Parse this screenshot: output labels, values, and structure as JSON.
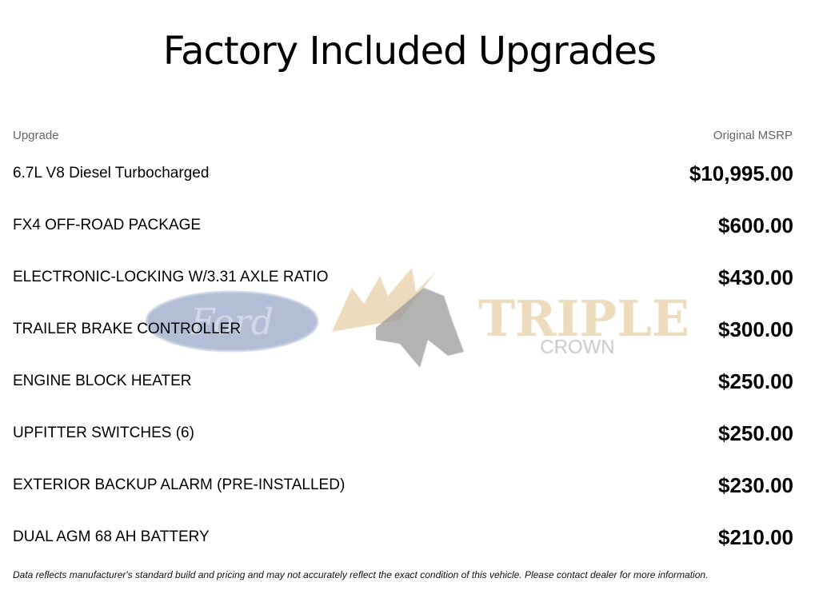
{
  "title": "Factory Included Upgrades",
  "watermark": {
    "logo_text": "Ford TRIPLE CROWN",
    "colors": {
      "ford_oval": "#9aa8c8",
      "horse": "#9a9a9a",
      "triple": "#e6cfa6",
      "crown": "#b5b5b5"
    }
  },
  "table": {
    "headers": {
      "upgrade": "Upgrade",
      "msrp": "Original MSRP"
    },
    "rows": [
      {
        "name": "6.7L V8 Diesel Turbocharged",
        "price": "$10,995.00"
      },
      {
        "name": "FX4 OFF-ROAD PACKAGE",
        "price": "$600.00"
      },
      {
        "name": "ELECTRONIC-LOCKING W/3.31 AXLE RATIO",
        "price": "$430.00"
      },
      {
        "name": "TRAILER BRAKE CONTROLLER",
        "price": "$300.00"
      },
      {
        "name": "ENGINE BLOCK HEATER",
        "price": "$250.00"
      },
      {
        "name": "UPFITTER SWITCHES (6)",
        "price": "$250.00"
      },
      {
        "name": "EXTERIOR BACKUP ALARM (PRE-INSTALLED)",
        "price": "$230.00"
      },
      {
        "name": "DUAL AGM 68 AH BATTERY",
        "price": "$210.00"
      }
    ]
  },
  "disclaimer": "Data reflects manufacturer's standard build and pricing and may not accurately reflect the exact condition of this vehicle. Please contact dealer for more information."
}
